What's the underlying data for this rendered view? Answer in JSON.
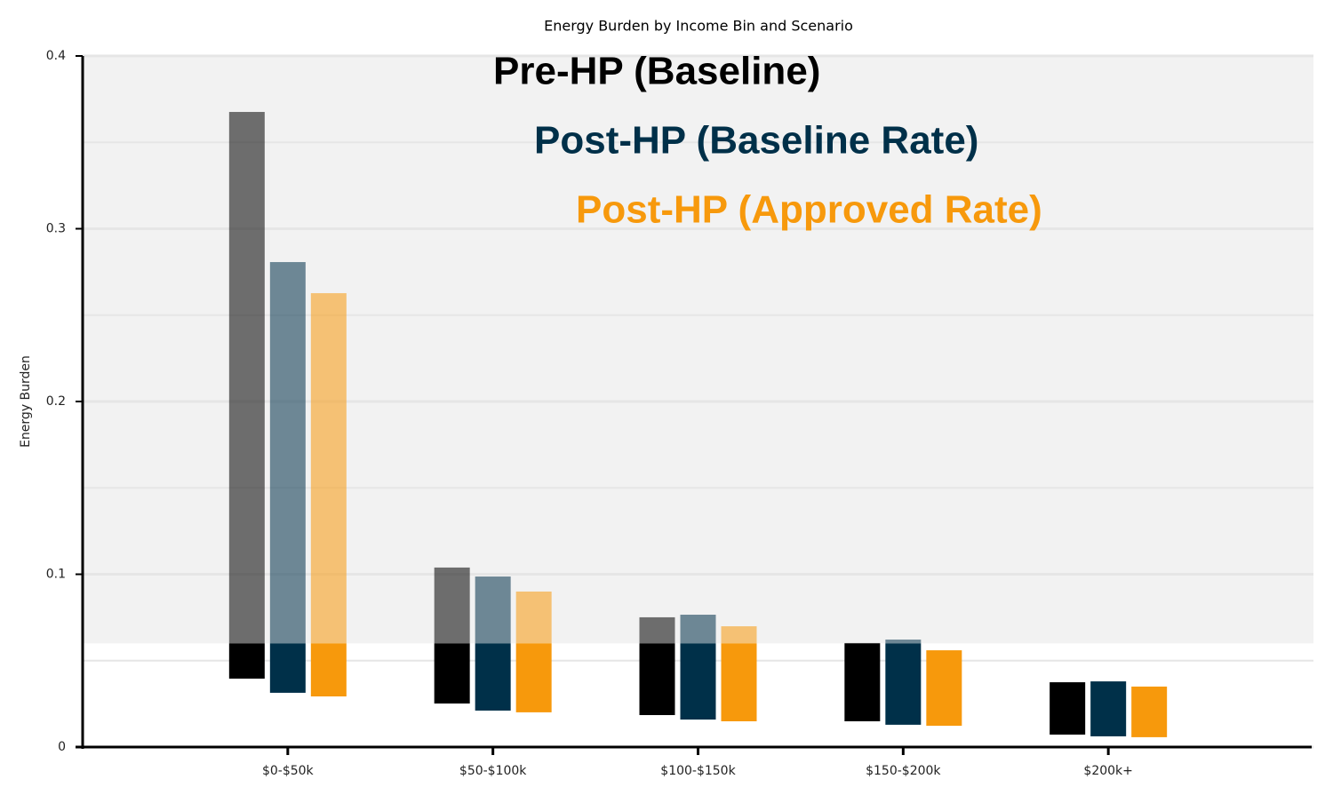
{
  "chart_data": {
    "type": "floating-bar",
    "title": "Energy Burden by Income Bin and Scenario",
    "y_label": "Energy Burden",
    "categories": [
      "$0-$50k",
      "$50-$100k",
      "$100-$150k",
      "$150-$200k",
      "$200k+"
    ],
    "series": [
      {
        "name": "Pre-HP (Baseline)",
        "color": "#000000",
        "low": [
          0.0396,
          0.0252,
          0.0185,
          0.0149,
          0.0072
        ],
        "high": [
          0.3676,
          0.1039,
          0.0751,
          0.0602,
          0.0375
        ]
      },
      {
        "name": "Post-HP (Baseline Rate)",
        "color": "#003049",
        "low": [
          0.0314,
          0.0211,
          0.0159,
          0.0129,
          0.0062
        ],
        "high": [
          0.2807,
          0.0987,
          0.0766,
          0.0622,
          0.038
        ]
      },
      {
        "name": "Post-HP (Approved Rate)",
        "color": "#f7990c",
        "low": [
          0.0293,
          0.0201,
          0.0149,
          0.0123,
          0.0057
        ],
        "high": [
          0.2627,
          0.09,
          0.0699,
          0.056,
          0.035
        ]
      }
    ],
    "ylim": [
      0,
      0.4
    ],
    "yticks": [
      0.0,
      0.1,
      0.2,
      0.3,
      0.4
    ],
    "minor_grid": [
      0.05,
      0.15,
      0.25,
      0.35
    ],
    "highlight_threshold": 0.06,
    "grid": true
  }
}
